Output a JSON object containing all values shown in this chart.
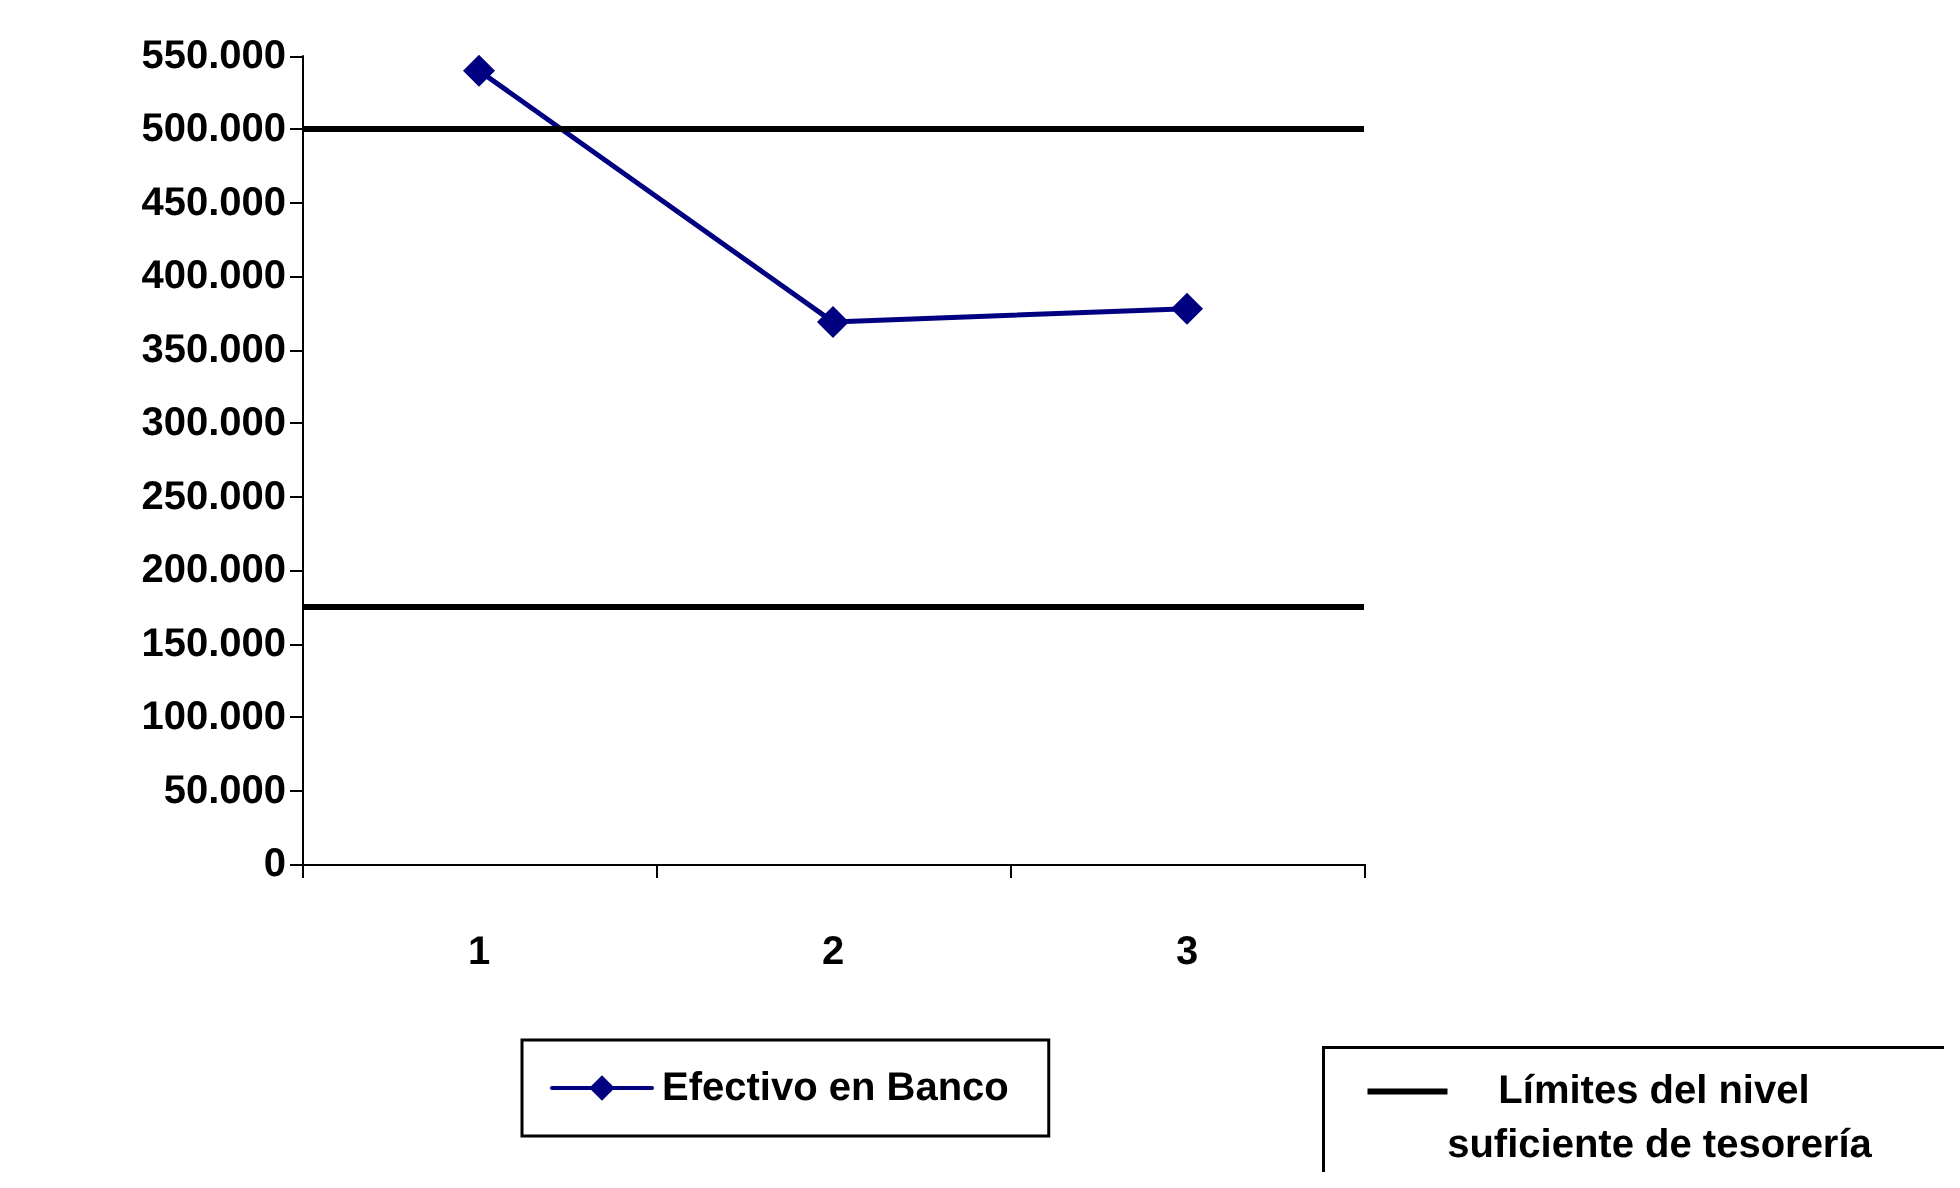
{
  "chart_data": {
    "type": "line",
    "categories": [
      "1",
      "2",
      "3"
    ],
    "series": [
      {
        "name": "Efectivo en Banco",
        "color": "#000080",
        "values": [
          540000,
          369000,
          378000
        ]
      }
    ],
    "ylim": [
      0,
      550000
    ],
    "yticks": [
      0,
      {
        "value": 50000,
        "label": "50.000"
      },
      {
        "value": 100000,
        "label": "100.000"
      },
      {
        "value": 150000,
        "label": "150.000"
      },
      {
        "value": 200000,
        "label": "200.000"
      },
      {
        "value": 250000,
        "label": "250.000"
      },
      {
        "value": 300000,
        "label": "300.000"
      },
      {
        "value": 350000,
        "label": "350.000"
      },
      {
        "value": 400000,
        "label": "400.000"
      },
      {
        "value": 450000,
        "label": "450.000"
      },
      {
        "value": 500000,
        "label": "500.000"
      },
      {
        "value": 550000,
        "label": "550.000"
      }
    ],
    "ref_lines": [
      {
        "axis": "y",
        "value": 500000,
        "label": "Límites del nivel suficiente de tesorería",
        "color": "#000000"
      },
      {
        "axis": "y",
        "value": 175000,
        "color": "#000000"
      }
    ],
    "marker": "diamond",
    "line_style": "solid",
    "grid": false,
    "legend": "bottom"
  }
}
